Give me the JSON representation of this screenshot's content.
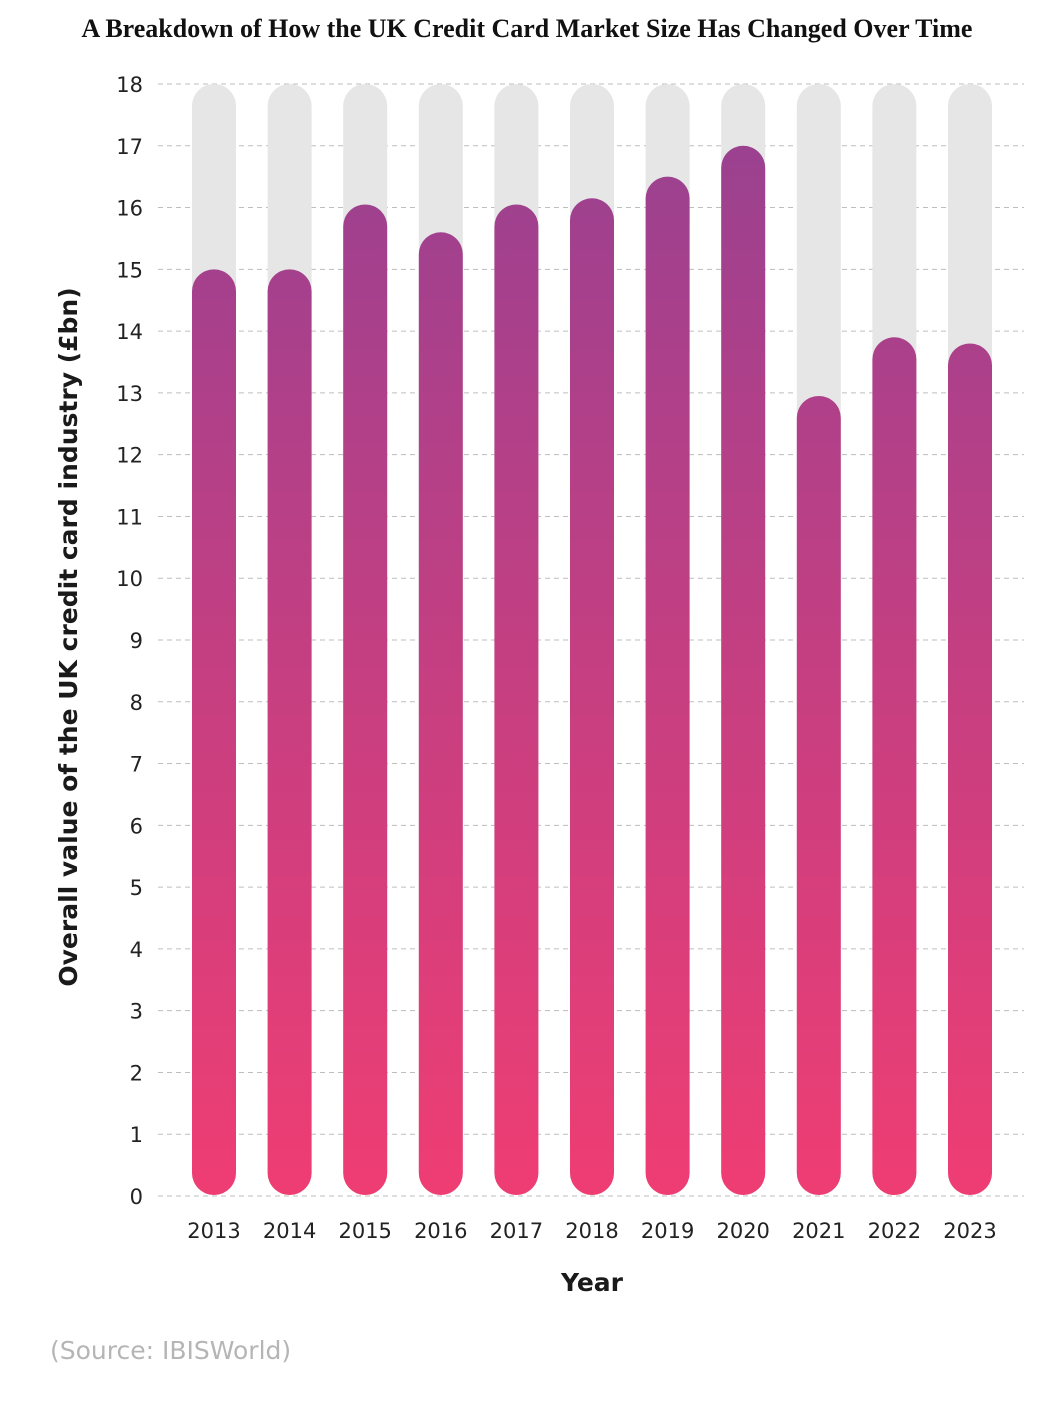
{
  "chart_data": {
    "type": "bar",
    "title": "A Breakdown of How the UK Credit Card Market Size Has Changed Over Time",
    "xlabel": "Year",
    "ylabel": "Overall value of the UK credit card industry (£bn)",
    "categories": [
      "2013",
      "2014",
      "2015",
      "2016",
      "2017",
      "2018",
      "2019",
      "2020",
      "2021",
      "2022",
      "2023"
    ],
    "values": [
      15.0,
      15.0,
      16.05,
      15.6,
      16.05,
      16.15,
      16.5,
      17.0,
      12.95,
      13.9,
      13.8
    ],
    "ylim": [
      0,
      18
    ],
    "yticks": [
      0,
      1,
      2,
      3,
      4,
      5,
      6,
      7,
      8,
      9,
      10,
      11,
      12,
      13,
      14,
      15,
      16,
      17,
      18
    ],
    "grid": true,
    "legend": "none",
    "colors": {
      "bar_top": "#9b4190",
      "bar_bottom": "#ef3d73",
      "track": "#e6e6e6",
      "grid": "#bdbdbd"
    }
  },
  "source": "(Source: IBISWorld)"
}
